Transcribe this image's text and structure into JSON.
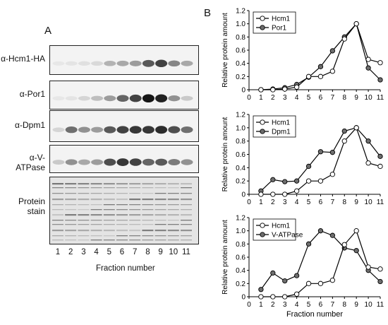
{
  "panel_a": {
    "letter": "A",
    "blots": [
      {
        "label": "α-Hcm1-HA",
        "bands": [
          0.02,
          0.03,
          0.05,
          0.08,
          0.25,
          0.3,
          0.35,
          0.65,
          0.75,
          0.45,
          0.3
        ]
      },
      {
        "label": "α-Por1",
        "bands": [
          0.02,
          0.03,
          0.1,
          0.2,
          0.35,
          0.6,
          0.75,
          0.95,
          0.9,
          0.4,
          0.15
        ]
      },
      {
        "label": "α-Dpm1",
        "bands": [
          0.1,
          0.55,
          0.4,
          0.35,
          0.65,
          0.75,
          0.8,
          0.8,
          0.85,
          0.7,
          0.55
        ]
      },
      {
        "label": "α-V-ATPase",
        "bands": [
          0.15,
          0.4,
          0.3,
          0.35,
          0.7,
          0.8,
          0.75,
          0.6,
          0.65,
          0.5,
          0.4
        ]
      }
    ],
    "stain_label_line1": "Protein",
    "stain_label_line2": "stain",
    "lanes": [
      "1",
      "2",
      "3",
      "4",
      "5",
      "6",
      "7",
      "8",
      "9",
      "10",
      "11"
    ],
    "xlabel": "Fraction number"
  },
  "panel_b": {
    "letter": "B"
  },
  "chart_data": [
    {
      "type": "line",
      "title": "",
      "xlabel": "",
      "ylabel": "Relative protein amount",
      "x": [
        1,
        2,
        3,
        4,
        5,
        6,
        7,
        8,
        9,
        10,
        11
      ],
      "xlim": [
        0,
        11
      ],
      "ylim": [
        0,
        1.2
      ],
      "xticks": [
        "0",
        "1",
        "2",
        "3",
        "4",
        "5",
        "6",
        "7",
        "8",
        "9",
        "10",
        "11"
      ],
      "yticks": [
        "0",
        "0.2",
        "0.4",
        "0.6",
        "0.8",
        "1.0",
        "1.2"
      ],
      "legend_position": "top-left",
      "series": [
        {
          "name": "Hcm1",
          "marker": "open",
          "values": [
            0.0,
            0.0,
            0.01,
            0.04,
            0.2,
            0.2,
            0.28,
            0.77,
            1.0,
            0.46,
            0.41
          ]
        },
        {
          "name": "Por1",
          "marker": "filled",
          "values": [
            0.0,
            0.01,
            0.03,
            0.08,
            0.19,
            0.35,
            0.59,
            0.8,
            1.0,
            0.33,
            0.15
          ]
        }
      ]
    },
    {
      "type": "line",
      "title": "",
      "xlabel": "",
      "ylabel": "Relative protein amount",
      "x": [
        1,
        2,
        3,
        4,
        5,
        6,
        7,
        8,
        9,
        10,
        11
      ],
      "xlim": [
        0,
        11
      ],
      "ylim": [
        0,
        1.2
      ],
      "xticks": [
        "0",
        "1",
        "2",
        "3",
        "4",
        "5",
        "6",
        "7",
        "8",
        "9",
        "10",
        "11"
      ],
      "yticks": [
        "0",
        "0.2",
        "0.4",
        "0.6",
        "0.8",
        "1.0",
        "1.2"
      ],
      "legend_position": "top-left",
      "series": [
        {
          "name": "Hcm1",
          "marker": "open",
          "values": [
            0.0,
            0.0,
            0.0,
            0.05,
            0.2,
            0.2,
            0.3,
            0.8,
            1.0,
            0.47,
            0.42
          ]
        },
        {
          "name": "Dpm1",
          "marker": "filled",
          "values": [
            0.05,
            0.22,
            0.19,
            0.2,
            0.42,
            0.64,
            0.63,
            0.95,
            1.0,
            0.8,
            0.57
          ]
        }
      ]
    },
    {
      "type": "line",
      "title": "",
      "xlabel": "Fraction number",
      "ylabel": "Relative protein amount",
      "x": [
        1,
        2,
        3,
        4,
        5,
        6,
        7,
        8,
        9,
        10,
        11
      ],
      "xlim": [
        0,
        11
      ],
      "ylim": [
        0,
        1.2
      ],
      "xticks": [
        "0",
        "1",
        "2",
        "3",
        "4",
        "5",
        "6",
        "7",
        "8",
        "9",
        "10",
        "11"
      ],
      "yticks": [
        "0",
        "0.2",
        "0.4",
        "0.6",
        "0.8",
        "1.0",
        "1.2"
      ],
      "legend_position": "top-left",
      "series": [
        {
          "name": "Hcm1",
          "marker": "open",
          "values": [
            0.0,
            0.0,
            0.0,
            0.04,
            0.2,
            0.2,
            0.25,
            0.79,
            1.0,
            0.45,
            0.42
          ]
        },
        {
          "name": "V-ATPase",
          "marker": "filled",
          "values": [
            0.11,
            0.36,
            0.24,
            0.32,
            0.8,
            1.0,
            0.93,
            0.74,
            0.7,
            0.4,
            0.23
          ]
        }
      ]
    }
  ]
}
